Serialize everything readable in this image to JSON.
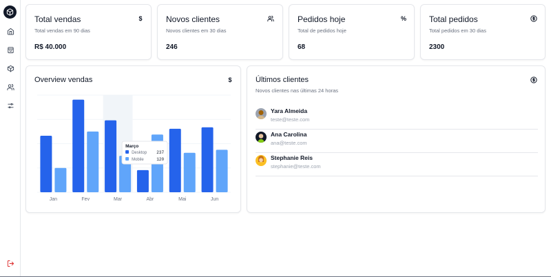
{
  "sidebar": {
    "items": [
      {
        "icon": "home-icon"
      },
      {
        "icon": "shopping-bag-icon"
      },
      {
        "icon": "package-icon"
      },
      {
        "icon": "users-icon"
      },
      {
        "icon": "settings-sliders-icon"
      }
    ],
    "logout_icon": "logout-icon",
    "logout_color": "#dc2626"
  },
  "stats": [
    {
      "title": "Total vendas",
      "subtitle": "Total vendas em 90 dias",
      "value": "R$ 40.000",
      "icon": "$"
    },
    {
      "title": "Novos clientes",
      "subtitle": "Novos clientes em 30 dias",
      "value": "246",
      "icon": "users-icon"
    },
    {
      "title": "Pedidos hoje",
      "subtitle": "Total de pedidos hoje",
      "value": "68",
      "icon": "%"
    },
    {
      "title": "Total pedidos",
      "subtitle": "Total pedidos em 30 dias",
      "value": "2300",
      "icon": "dollar-circle-icon"
    }
  ],
  "overview": {
    "title": "Overview vendas",
    "icon": "$"
  },
  "chart_data": {
    "type": "bar",
    "categories": [
      "Jan",
      "Fev",
      "Mar",
      "Abr",
      "Mai",
      "Jun"
    ],
    "series": [
      {
        "name": "Desktop",
        "values": [
          186,
          305,
          237,
          73,
          209,
          214
        ],
        "color": "#2563eb"
      },
      {
        "name": "Mobile",
        "values": [
          80,
          200,
          120,
          190,
          130,
          140
        ],
        "color": "#60a5fa"
      }
    ],
    "ylim": [
      0,
      320
    ],
    "grid": true,
    "highlight_category": "Mar",
    "tooltip": {
      "title": "Março",
      "rows": [
        {
          "label": "Desktop",
          "value": "237"
        },
        {
          "label": "Mobile",
          "value": "120"
        }
      ]
    }
  },
  "clients": {
    "title": "Últimos clientes",
    "subtitle": "Novos clientes nas últimas 24 horas",
    "icon": "dollar-circle-icon",
    "items": [
      {
        "name": "Yara Almeida",
        "email": "teste@teste.com",
        "avatar_color": "#a16207"
      },
      {
        "name": "Ana Carolina",
        "email": "ana@teste.com",
        "avatar_color": "#1f2937"
      },
      {
        "name": "Stephanie Reis",
        "email": "stephanie@teste.com",
        "avatar_color": "#d97706"
      }
    ]
  }
}
